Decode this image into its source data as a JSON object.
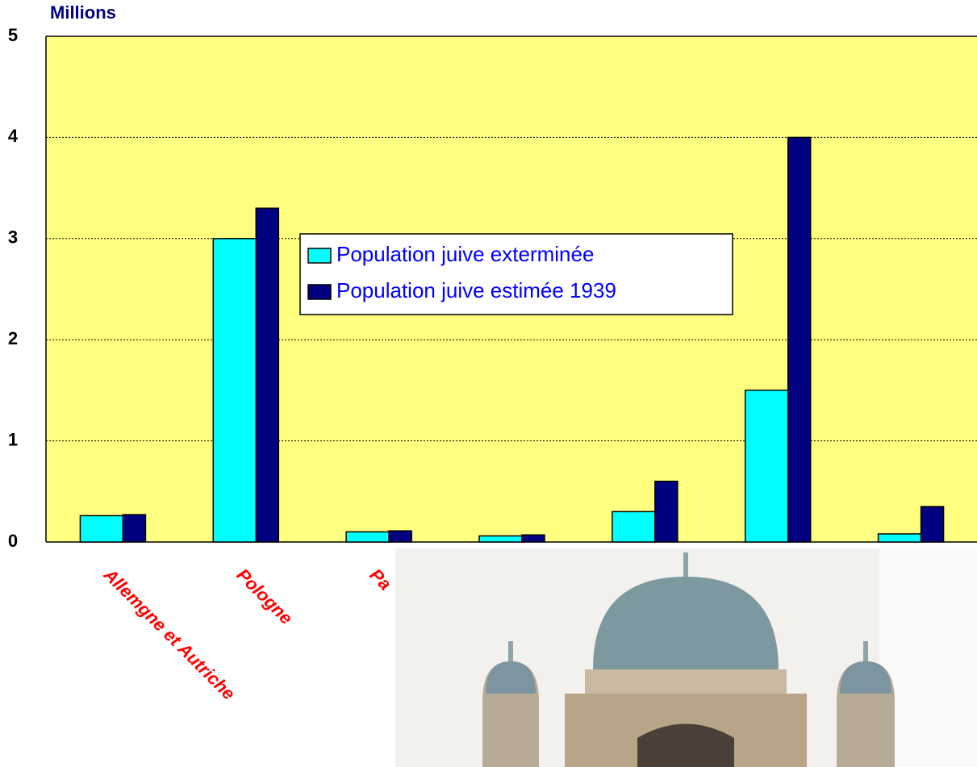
{
  "chart_data": {
    "type": "bar",
    "y_label": "Millions",
    "categories": [
      "Allemgne et Autriche",
      "Pologne",
      "Pa",
      null,
      null,
      null,
      null
    ],
    "series": [
      {
        "name": "Population juive exterminée",
        "color": "#00ffff",
        "values": [
          0.26,
          3.0,
          0.1,
          0.06,
          0.3,
          1.5,
          0.08
        ]
      },
      {
        "name": "Population juive estimée 1939",
        "color": "#000080",
        "values": [
          0.27,
          3.3,
          0.11,
          0.07,
          0.6,
          4.0,
          0.35
        ]
      }
    ],
    "ylim": [
      0,
      5
    ],
    "yticks": [
      0,
      1,
      2,
      3,
      4,
      5
    ],
    "grid": true,
    "plot_background": "#ffff80"
  }
}
